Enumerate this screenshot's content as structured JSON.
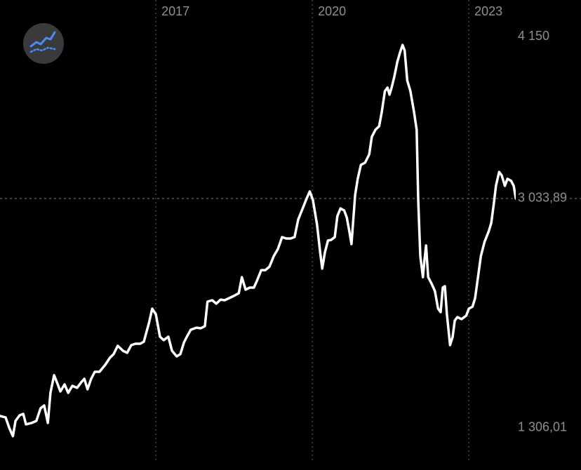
{
  "chart_data": {
    "type": "line",
    "color": "#ffffff",
    "grid": true,
    "xlim": [
      2014.013,
      2025.15
    ],
    "xticks": [
      2017,
      2020,
      2023
    ],
    "ylim": [
      1060,
      4477
    ],
    "yticks": [
      {
        "value": 4150,
        "label": "4 150"
      },
      {
        "value": 1306.01,
        "label": "1 306,01"
      }
    ],
    "last_price": {
      "value": 3033.89,
      "label": "3 033,89"
    },
    "x": [
      2014.01,
      2014.12,
      2014.19,
      2014.26,
      2014.31,
      2014.39,
      2014.46,
      2014.51,
      2014.62,
      2014.71,
      2014.79,
      2014.86,
      2014.93,
      2014.98,
      2015.05,
      2015.12,
      2015.17,
      2015.25,
      2015.32,
      2015.4,
      2015.49,
      2015.57,
      2015.63,
      2015.69,
      2015.76,
      2015.83,
      2015.92,
      2016.03,
      2016.12,
      2016.19,
      2016.27,
      2016.37,
      2016.45,
      2016.53,
      2016.61,
      2016.7,
      2016.77,
      2016.87,
      2016.93,
      2017.0,
      2017.08,
      2017.15,
      2017.24,
      2017.31,
      2017.4,
      2017.47,
      2017.54,
      2017.61,
      2017.67,
      2017.78,
      2017.86,
      2017.94,
      2017.99,
      2018.08,
      2018.16,
      2018.24,
      2018.32,
      2018.41,
      2018.49,
      2018.59,
      2018.65,
      2018.72,
      2018.8,
      2018.88,
      2018.94,
      2019.02,
      2019.1,
      2019.18,
      2019.26,
      2019.34,
      2019.42,
      2019.5,
      2019.58,
      2019.66,
      2019.73,
      2019.8,
      2019.88,
      2019.95,
      2020.01,
      2020.09,
      2020.15,
      2020.19,
      2020.24,
      2020.3,
      2020.36,
      2020.43,
      2020.48,
      2020.54,
      2020.61,
      2020.66,
      2020.71,
      2020.75,
      2020.82,
      2020.87,
      2020.93,
      2021.01,
      2021.09,
      2021.14,
      2021.21,
      2021.28,
      2021.33,
      2021.39,
      2021.44,
      2021.48,
      2021.52,
      2021.57,
      2021.63,
      2021.68,
      2021.73,
      2021.77,
      2021.82,
      2021.88,
      2021.95,
      2022.0,
      2022.03,
      2022.07,
      2022.12,
      2022.15,
      2022.18,
      2022.22,
      2022.29,
      2022.35,
      2022.41,
      2022.46,
      2022.5,
      2022.54,
      2022.58,
      2022.64,
      2022.69,
      2022.73,
      2022.78,
      2022.86,
      2022.95,
      2023.0,
      2023.07,
      2023.12,
      2023.17,
      2023.23,
      2023.3,
      2023.38,
      2023.43,
      2023.48,
      2023.52,
      2023.58,
      2023.63,
      2023.69,
      2023.74,
      2023.81,
      2023.86,
      2023.9
    ],
    "values": [
      1453,
      1442,
      1366,
      1306.01,
      1417,
      1458,
      1468,
      1392,
      1402,
      1417,
      1509,
      1529,
      1402,
      1621,
      1749,
      1682,
      1631,
      1682,
      1621,
      1672,
      1657,
      1698,
      1723,
      1647,
      1723,
      1774,
      1774,
      1825,
      1876,
      1902,
      1963,
      1927,
      1912,
      1968,
      1978,
      1978,
      1993,
      2131,
      2233,
      2192,
      2029,
      2004,
      2029,
      1927,
      1886,
      1902,
      1988,
      2039,
      2080,
      2095,
      2090,
      2106,
      2284,
      2294,
      2269,
      2299,
      2294,
      2310,
      2325,
      2345,
      2462,
      2371,
      2386,
      2386,
      2437,
      2513,
      2513,
      2539,
      2615,
      2666,
      2753,
      2743,
      2743,
      2753,
      2881,
      2947,
      3024,
      3085,
      3024,
      2845,
      2641,
      2524,
      2641,
      2728,
      2733,
      2753,
      2906,
      2962,
      2947,
      2896,
      2794,
      2702,
      3059,
      3177,
      3278,
      3294,
      3355,
      3483,
      3534,
      3559,
      3661,
      3814,
      3840,
      3789,
      3840,
      3916,
      4028,
      4094,
      4150,
      4110,
      3891,
      3814,
      3661,
      3534,
      3024,
      2615,
      2462,
      2590,
      2692,
      2462,
      2411,
      2361,
      2233,
      2208,
      2386,
      2396,
      2192,
      1968,
      2029,
      2146,
      2172,
      2157,
      2182,
      2233,
      2248,
      2310,
      2447,
      2615,
      2718,
      2794,
      2855,
      2998,
      3126,
      3227,
      3202,
      3126,
      3177,
      3162,
      3126,
      3033.89
    ]
  }
}
